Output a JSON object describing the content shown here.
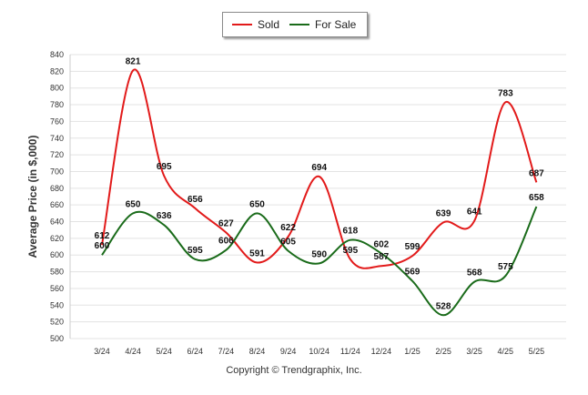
{
  "chart_data": {
    "type": "line",
    "categories": [
      "3/24",
      "4/24",
      "5/24",
      "6/24",
      "7/24",
      "8/24",
      "9/24",
      "10/24",
      "11/24",
      "12/24",
      "1/25",
      "2/25",
      "3/25",
      "4/25",
      "5/25"
    ],
    "series": [
      {
        "name": "Sold",
        "color": "#e21a1a",
        "values": [
          612,
          821,
          695,
          656,
          627,
          591,
          622,
          694,
          595,
          587,
          599,
          639,
          641,
          783,
          687
        ]
      },
      {
        "name": "For Sale",
        "color": "#1a6b1a",
        "values": [
          600,
          650,
          636,
          595,
          606,
          650,
          605,
          590,
          618,
          602,
          569,
          528,
          568,
          575,
          658
        ]
      }
    ],
    "ylabel": "Average Price (in $,000)",
    "xlabel": "",
    "ylim": [
      500,
      840
    ],
    "yticks": [
      500,
      520,
      540,
      560,
      580,
      600,
      620,
      640,
      660,
      680,
      700,
      720,
      740,
      760,
      780,
      800,
      820,
      840
    ],
    "grid": true,
    "legend_position": "top-center"
  },
  "legend": [
    {
      "label": "Sold",
      "color": "#e21a1a"
    },
    {
      "label": "For Sale",
      "color": "#1a6b1a"
    }
  ],
  "footer": {
    "copyright": "Copyright © Trendgraphix, Inc."
  }
}
